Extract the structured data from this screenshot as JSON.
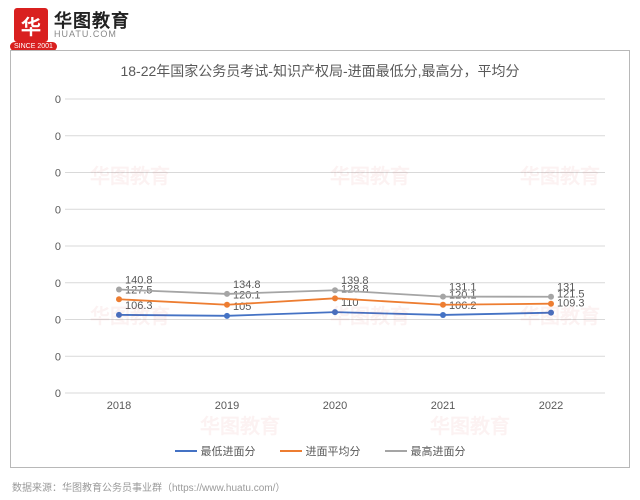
{
  "logo": {
    "badge": "华",
    "cn": "华图教育",
    "en": "HUATU.COM",
    "since": "SINCE 2001"
  },
  "chart": {
    "type": "line",
    "title": "18-22年国家公务员考试-知识产权局-进面最低分,最高分，平均分",
    "categories": [
      "2018",
      "2019",
      "2020",
      "2021",
      "2022"
    ],
    "ylim": [
      0,
      400
    ],
    "ytick_step": 50,
    "background_color": "#ffffff",
    "grid_color": "#d9d9d9",
    "axis_font_size": 11,
    "title_font_size": 14,
    "title_color": "#595959",
    "label_color": "#595959",
    "line_width": 1.8,
    "marker": "circle",
    "marker_size": 3,
    "series": [
      {
        "name": "最低进面分",
        "color": "#4472c4",
        "values": [
          106.3,
          105,
          110,
          106.2,
          109.3
        ]
      },
      {
        "name": "进面平均分",
        "color": "#ed7d31",
        "values": [
          127.5,
          120.1,
          128.8,
          120.1,
          121.5
        ]
      },
      {
        "name": "最高进面分",
        "color": "#a5a5a5",
        "values": [
          140.8,
          134.8,
          139.8,
          131.1,
          131
        ]
      }
    ],
    "legend_position": "bottom"
  },
  "source": "数据来源：华图教育公务员事业群（https://www.huatu.com/）",
  "watermark": "华图教育"
}
